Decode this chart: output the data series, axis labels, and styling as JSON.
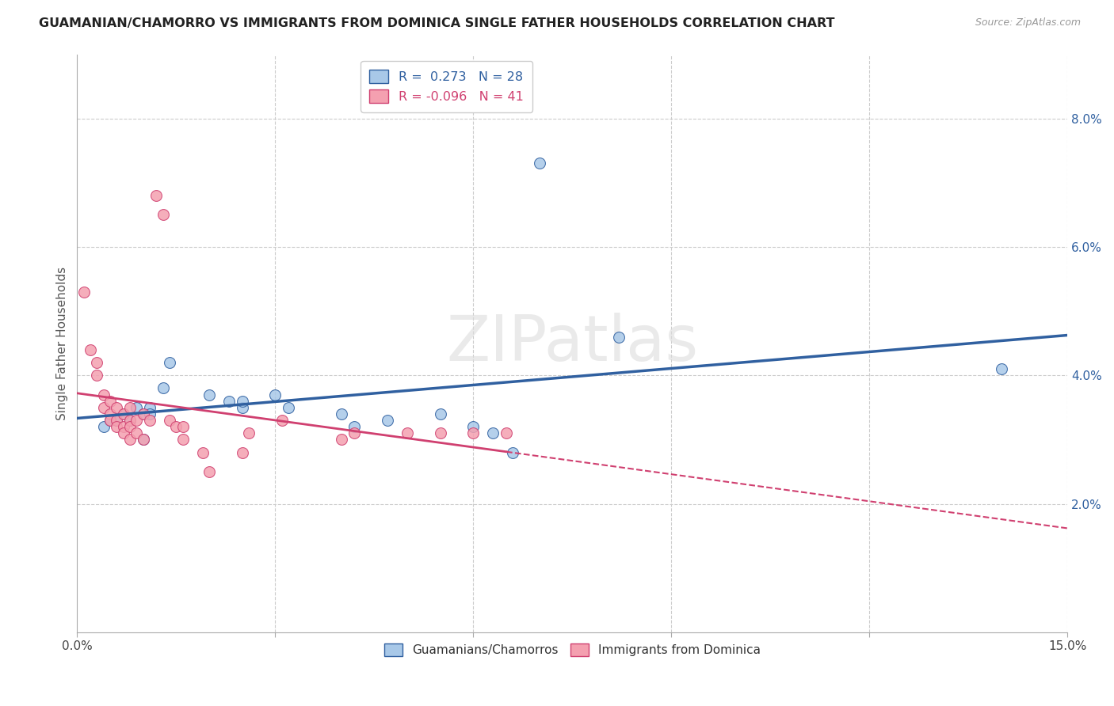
{
  "title": "GUAMANIAN/CHAMORRO VS IMMIGRANTS FROM DOMINICA SINGLE FATHER HOUSEHOLDS CORRELATION CHART",
  "source": "Source: ZipAtlas.com",
  "ylabel": "Single Father Households",
  "xlim": [
    0.0,
    0.15
  ],
  "ylim": [
    0.0,
    0.09
  ],
  "xticks": [
    0.0,
    0.03,
    0.06,
    0.09,
    0.12,
    0.15
  ],
  "xticklabels": [
    "0.0%",
    "",
    "",
    "",
    "",
    "15.0%"
  ],
  "yticks_right": [
    0.02,
    0.04,
    0.06,
    0.08
  ],
  "ytick_labels_right": [
    "2.0%",
    "4.0%",
    "6.0%",
    "8.0%"
  ],
  "legend_blue_r": "0.273",
  "legend_blue_n": "28",
  "legend_pink_r": "-0.096",
  "legend_pink_n": "41",
  "legend_labels": [
    "Guamanians/Chamorros",
    "Immigrants from Dominica"
  ],
  "blue_color": "#a8c8e8",
  "pink_color": "#f4a0b0",
  "blue_line_color": "#3060a0",
  "pink_line_color": "#d04070",
  "watermark": "ZIPatlas",
  "blue_points": [
    [
      0.004,
      0.032
    ],
    [
      0.005,
      0.033
    ],
    [
      0.006,
      0.033
    ],
    [
      0.007,
      0.034
    ],
    [
      0.008,
      0.033
    ],
    [
      0.009,
      0.035
    ],
    [
      0.01,
      0.034
    ],
    [
      0.01,
      0.03
    ],
    [
      0.011,
      0.035
    ],
    [
      0.011,
      0.034
    ],
    [
      0.013,
      0.038
    ],
    [
      0.014,
      0.042
    ],
    [
      0.02,
      0.037
    ],
    [
      0.023,
      0.036
    ],
    [
      0.025,
      0.035
    ],
    [
      0.025,
      0.036
    ],
    [
      0.03,
      0.037
    ],
    [
      0.032,
      0.035
    ],
    [
      0.04,
      0.034
    ],
    [
      0.042,
      0.032
    ],
    [
      0.047,
      0.033
    ],
    [
      0.055,
      0.034
    ],
    [
      0.06,
      0.032
    ],
    [
      0.063,
      0.031
    ],
    [
      0.066,
      0.028
    ],
    [
      0.07,
      0.073
    ],
    [
      0.082,
      0.046
    ],
    [
      0.14,
      0.041
    ]
  ],
  "pink_points": [
    [
      0.001,
      0.053
    ],
    [
      0.002,
      0.044
    ],
    [
      0.003,
      0.042
    ],
    [
      0.003,
      0.04
    ],
    [
      0.004,
      0.037
    ],
    [
      0.004,
      0.035
    ],
    [
      0.005,
      0.036
    ],
    [
      0.005,
      0.034
    ],
    [
      0.005,
      0.033
    ],
    [
      0.006,
      0.035
    ],
    [
      0.006,
      0.033
    ],
    [
      0.006,
      0.032
    ],
    [
      0.007,
      0.034
    ],
    [
      0.007,
      0.032
    ],
    [
      0.007,
      0.031
    ],
    [
      0.008,
      0.035
    ],
    [
      0.008,
      0.033
    ],
    [
      0.008,
      0.032
    ],
    [
      0.008,
      0.03
    ],
    [
      0.009,
      0.033
    ],
    [
      0.009,
      0.031
    ],
    [
      0.01,
      0.034
    ],
    [
      0.01,
      0.03
    ],
    [
      0.011,
      0.033
    ],
    [
      0.012,
      0.068
    ],
    [
      0.013,
      0.065
    ],
    [
      0.014,
      0.033
    ],
    [
      0.015,
      0.032
    ],
    [
      0.016,
      0.032
    ],
    [
      0.016,
      0.03
    ],
    [
      0.019,
      0.028
    ],
    [
      0.02,
      0.025
    ],
    [
      0.025,
      0.028
    ],
    [
      0.026,
      0.031
    ],
    [
      0.031,
      0.033
    ],
    [
      0.04,
      0.03
    ],
    [
      0.042,
      0.031
    ],
    [
      0.05,
      0.031
    ],
    [
      0.055,
      0.031
    ],
    [
      0.06,
      0.031
    ],
    [
      0.065,
      0.031
    ]
  ]
}
